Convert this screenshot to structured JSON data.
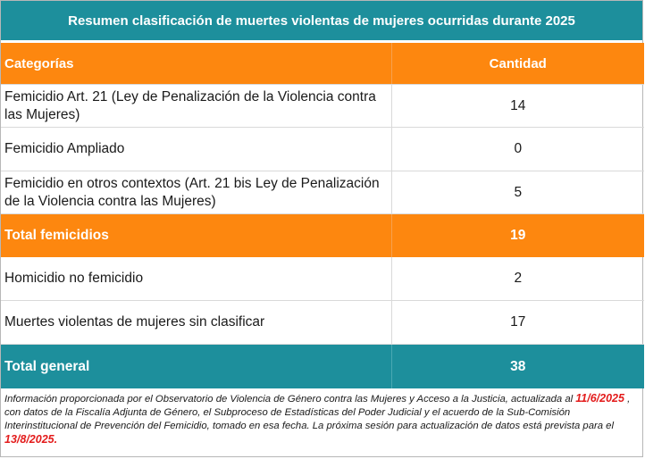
{
  "title": "Resumen clasificación de muertes violentas de mujeres ocurridas durante 2025",
  "headers": {
    "category": "Categorías",
    "count": "Cantidad"
  },
  "rows": [
    {
      "label": "Femicidio Art. 21 (Ley de Penalización de la Violencia contra las Mujeres)",
      "value": "14"
    },
    {
      "label": "Femicidio Ampliado",
      "value": "0"
    },
    {
      "label": "Femicidio en otros contextos (Art. 21 bis Ley de Penalización de la Violencia contra las Mujeres)",
      "value": "5"
    },
    {
      "label": "Total femicidios",
      "value": "19"
    },
    {
      "label": "Homicidio no femicidio",
      "value": "2"
    },
    {
      "label": "Muertes violentas de mujeres sin clasificar",
      "value": "17"
    },
    {
      "label": "Total general",
      "value": "38"
    }
  ],
  "note": {
    "part1": "Información proporcionada por el Observatorio de Violencia de Género contra las Mujeres y Acceso a la Justicia, actualizada al ",
    "date1": "11/6/2025",
    "part2": " , con datos de la Fiscalía Adjunta de Género, el Subproceso de Estadísticas del Poder Judicial y el acuerdo de la Sub-Comisión Interinstitucional de Prevención del Femicidio, tomado en esa fecha. La próxima sesión para actualización de datos está prevista para el  ",
    "date2": "13/8/2025."
  },
  "colors": {
    "teal": "#1d8f9c",
    "orange": "#fd870f",
    "highlight_red": "#e31b1b"
  }
}
